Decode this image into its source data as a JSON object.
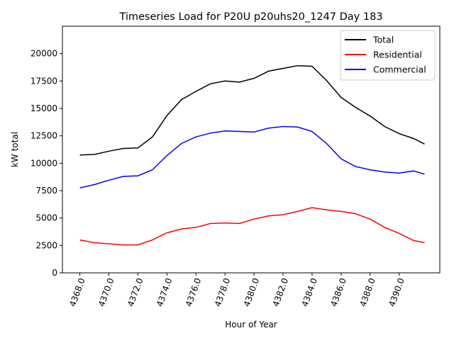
{
  "chart_data": {
    "type": "line",
    "title": "Timeseries Load for P20U p20uhs20_1247  Day 183",
    "xlabel": "Hour of Year",
    "ylabel": "kW total",
    "xlim": [
      4366.8,
      4392.8
    ],
    "ylim": [
      0,
      22500
    ],
    "grid": false,
    "legend_position": "top-right",
    "xticks": [
      "4368.0",
      "4370.0",
      "4372.0",
      "4374.0",
      "4376.0",
      "4378.0",
      "4380.0",
      "4382.0",
      "4384.0",
      "4386.0",
      "4388.0",
      "4390.0"
    ],
    "xtick_values": [
      4368,
      4370,
      4372,
      4374,
      4376,
      4378,
      4380,
      4382,
      4384,
      4386,
      4388,
      4390
    ],
    "yticks": [
      "0",
      "2500",
      "5000",
      "7500",
      "10000",
      "12500",
      "15000",
      "17500",
      "20000"
    ],
    "ytick_values": [
      0,
      2500,
      5000,
      7500,
      10000,
      12500,
      15000,
      17500,
      20000
    ],
    "x": [
      4368,
      4369,
      4370,
      4371,
      4372,
      4373,
      4374,
      4375,
      4376,
      4377,
      4378,
      4379,
      4380,
      4381,
      4382,
      4383,
      4384,
      4385,
      4386,
      4387,
      4388,
      4389,
      4390,
      4391,
      4391.75
    ],
    "series": [
      {
        "name": "Total",
        "color": "#000000",
        "values": [
          10750,
          10800,
          11100,
          11350,
          11400,
          12400,
          14350,
          15800,
          16550,
          17250,
          17500,
          17400,
          17750,
          18400,
          18650,
          18900,
          18850,
          17550,
          16000,
          15100,
          14300,
          13350,
          12700,
          12250,
          11750
        ]
      },
      {
        "name": "Residential",
        "color": "#ff0000",
        "values": [
          3000,
          2750,
          2650,
          2550,
          2550,
          3000,
          3650,
          4000,
          4150,
          4500,
          4550,
          4500,
          4900,
          5200,
          5300,
          5600,
          5950,
          5750,
          5600,
          5400,
          4900,
          4150,
          3600,
          2950,
          2750
        ]
      },
      {
        "name": "Commercial",
        "color": "#0000ff",
        "values": [
          7750,
          8050,
          8450,
          8800,
          8850,
          9400,
          10700,
          11800,
          12400,
          12750,
          12950,
          12900,
          12850,
          13200,
          13350,
          13300,
          12900,
          11800,
          10400,
          9700,
          9400,
          9200,
          9100,
          9300,
          9000
        ]
      }
    ]
  }
}
